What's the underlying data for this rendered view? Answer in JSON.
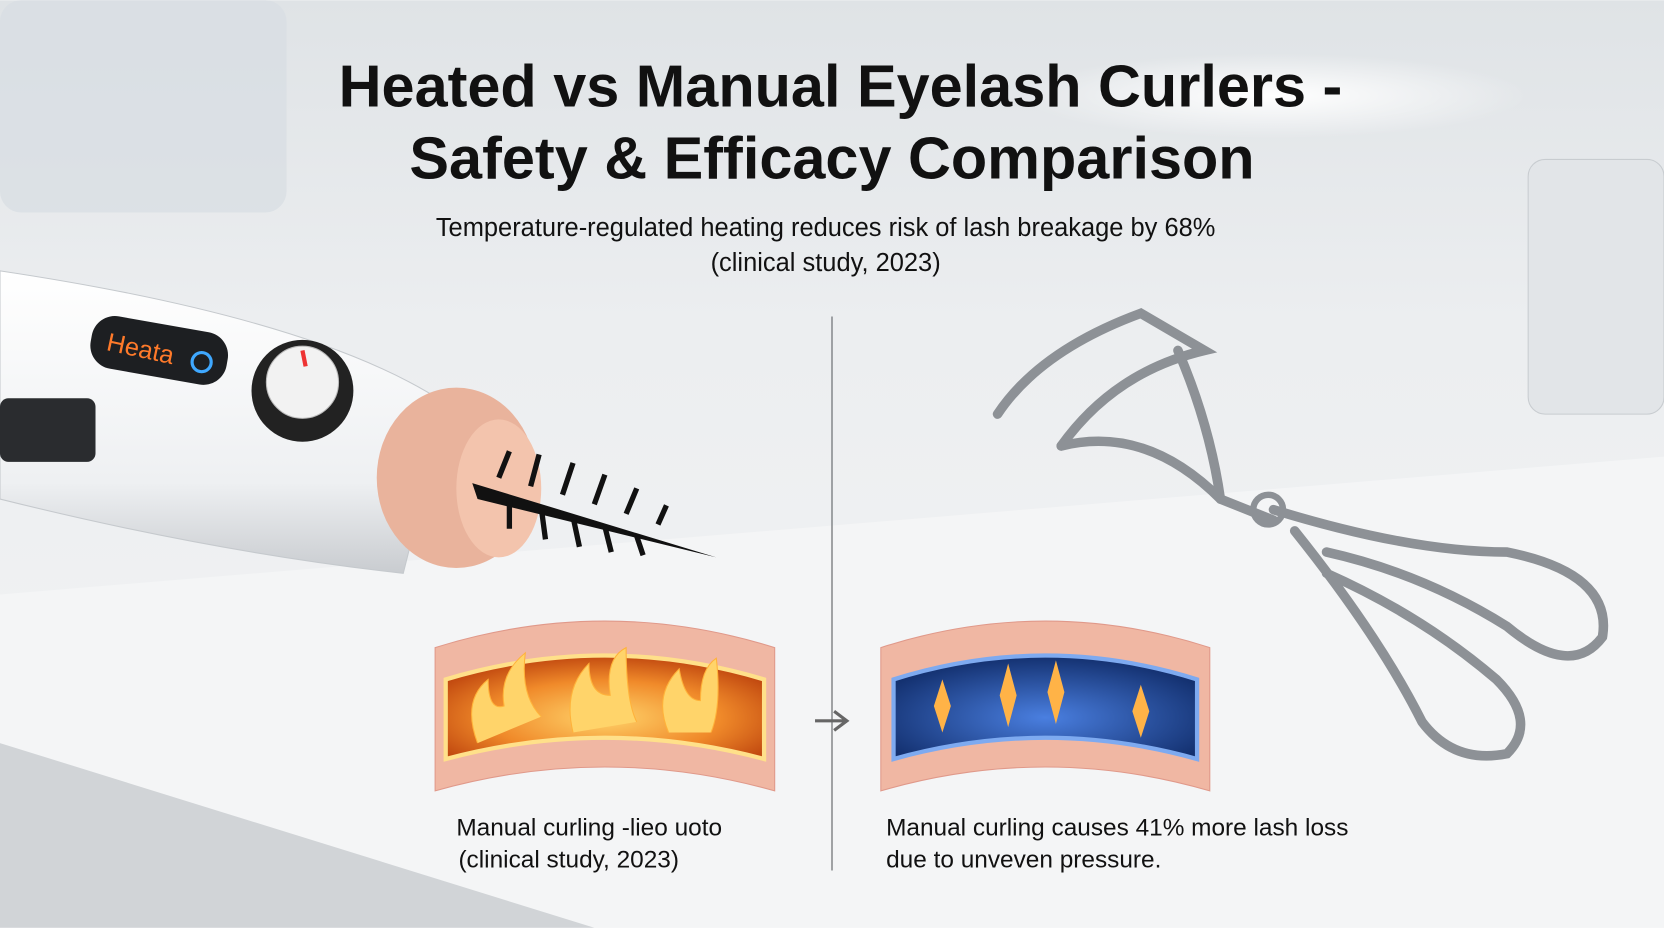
{
  "header": {
    "title": [
      "Heated vs Manual Eyelash Curlers -",
      "Safety & Efficacy Comparison"
    ],
    "subtitle": [
      "Temperature-regulated heating reduces risk of lash breakage by 68%",
      "(clinical study, 2023)"
    ]
  },
  "device": {
    "display": "Heata"
  },
  "panels": [
    {
      "caption": [
        "Manual curling -lieo uoto",
        "(clinical study, 2023)"
      ]
    },
    {
      "caption": [
        "Manual curling causes 41% more lash loss",
        "due to unveven pressure."
      ]
    }
  ]
}
